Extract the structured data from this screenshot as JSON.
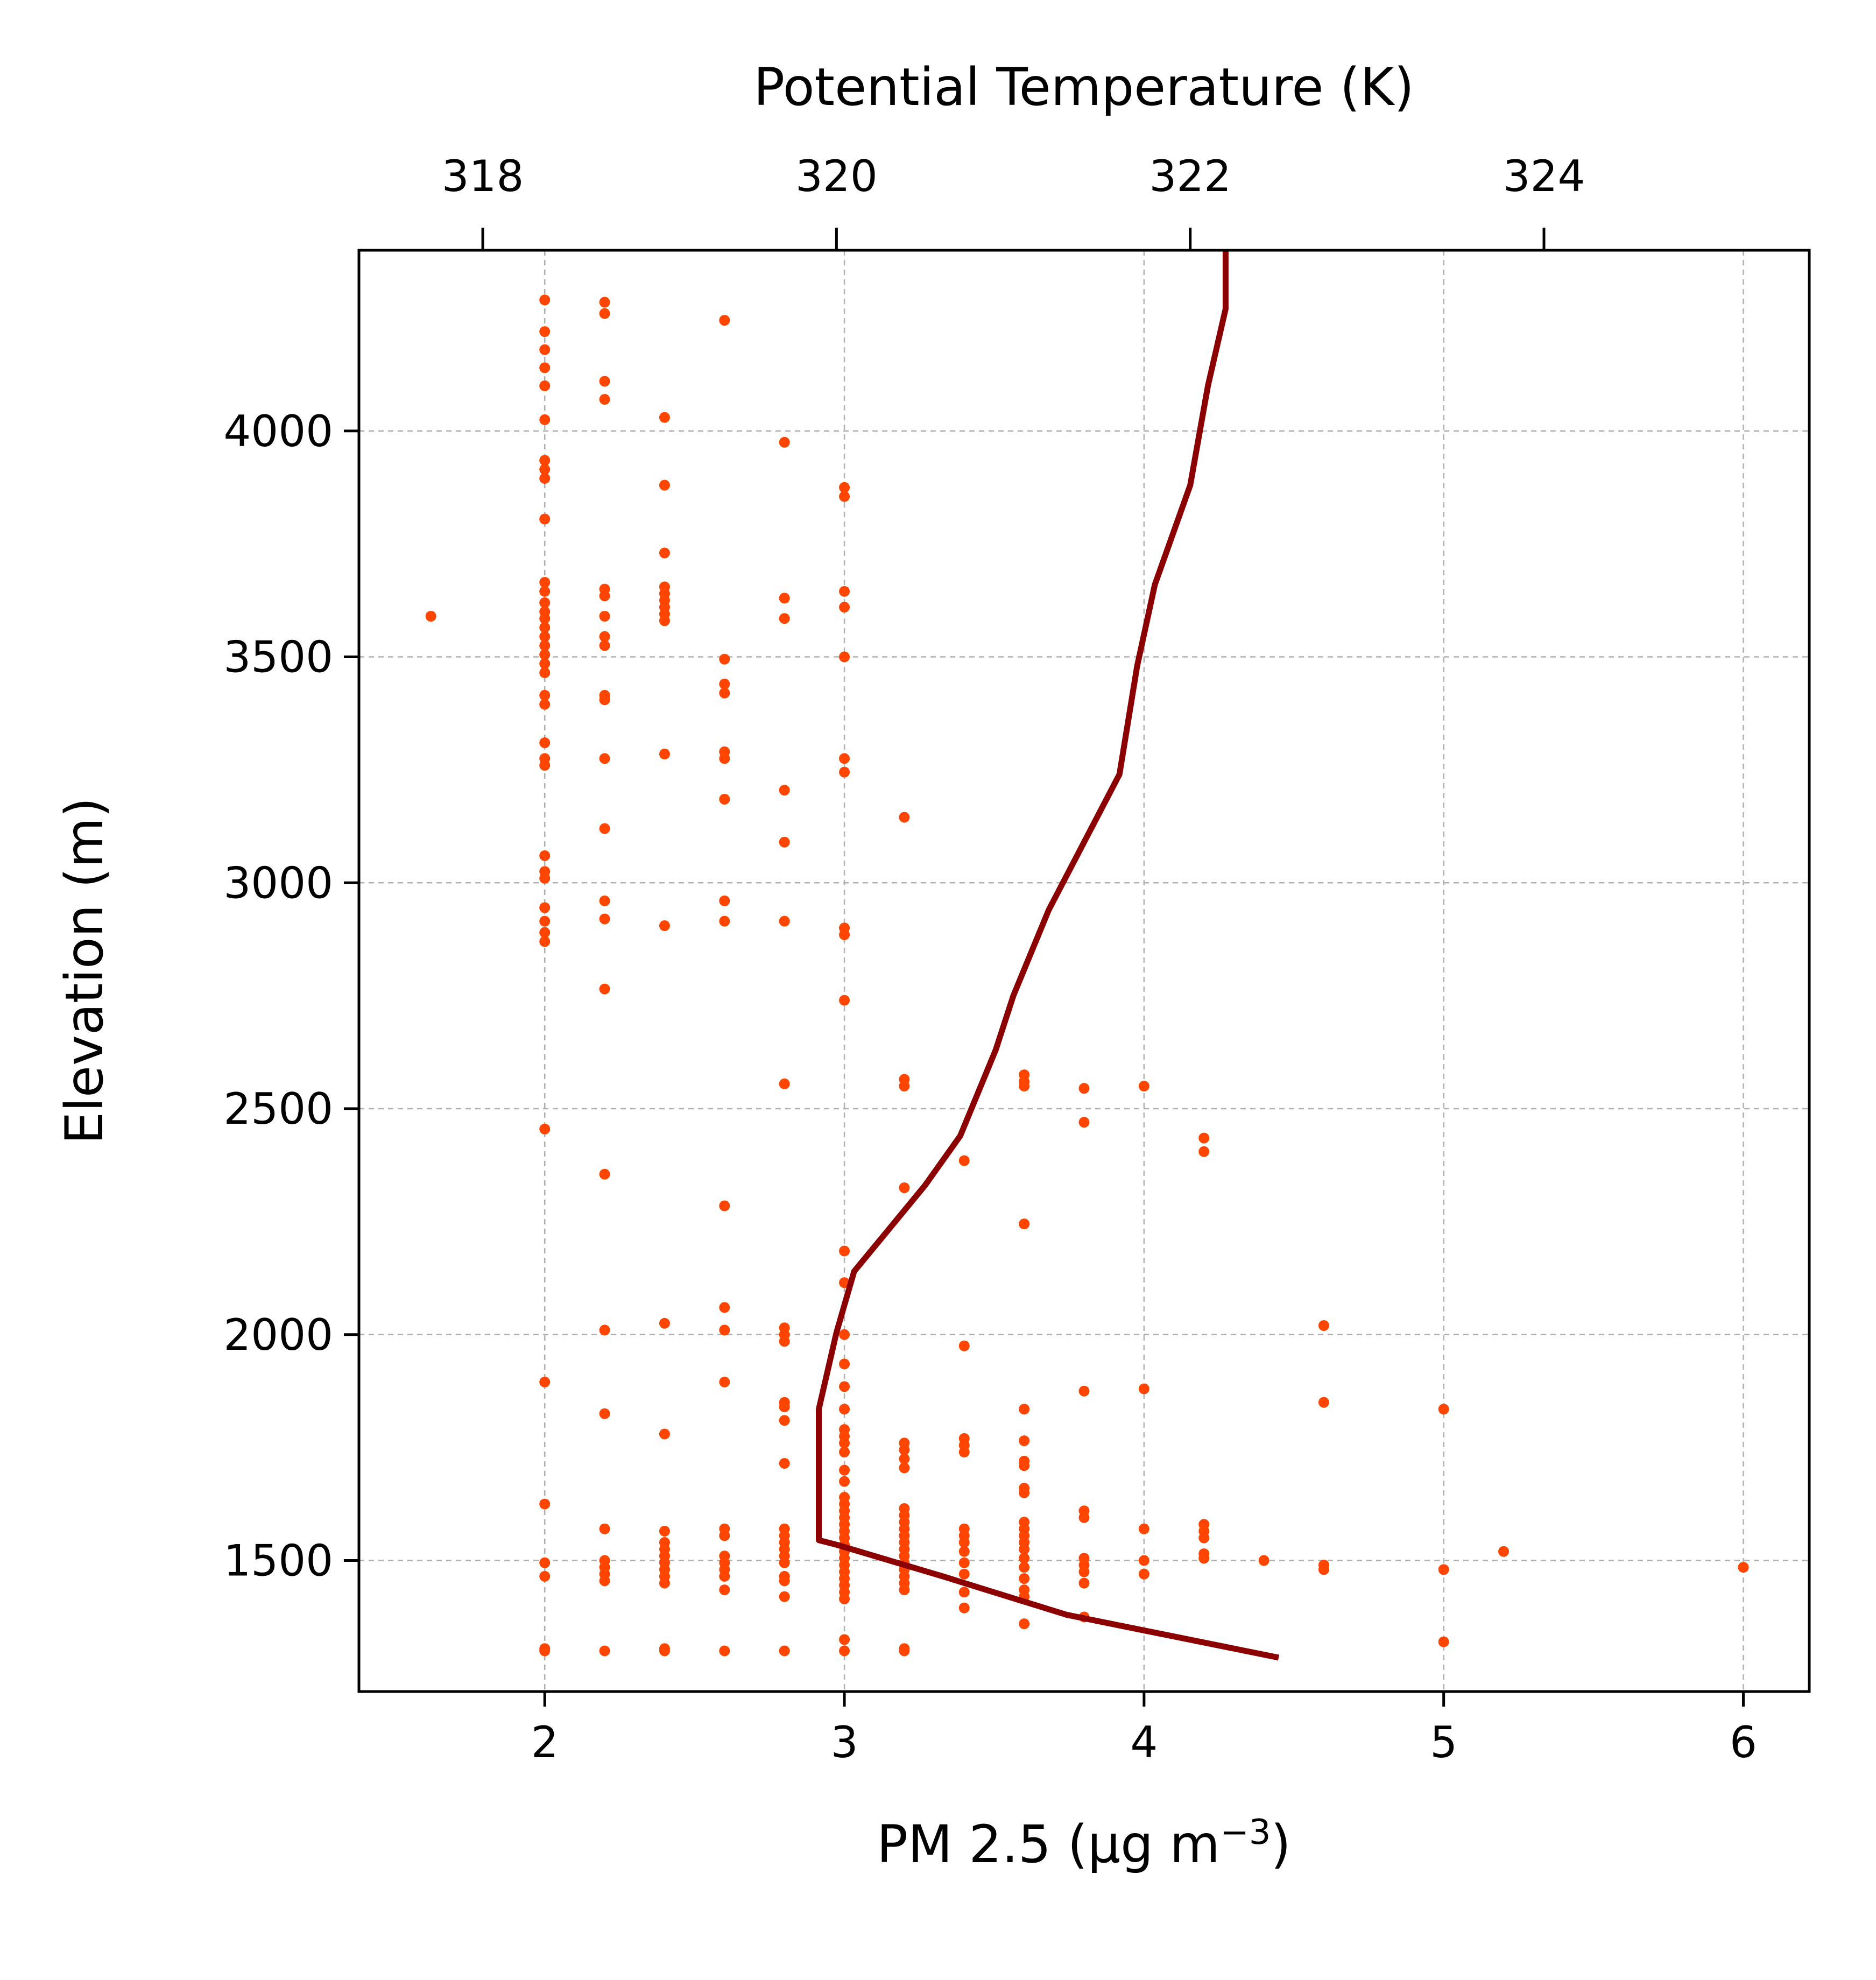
{
  "chart_data": {
    "type": "scatter",
    "xlabel": "PM 2.5 (μg m",
    "xlabel_superscript": "−3",
    "xlabel_suffix": ")",
    "ylabel": "Elevation (m)",
    "x2label": "Potential Temperature (K)",
    "xlim": [
      1.38,
      6.22
    ],
    "ylim": [
      1210,
      4400
    ],
    "x2lim": [
      317.3,
      325.5
    ],
    "x_ticks": [
      2,
      3,
      4,
      5,
      6
    ],
    "y_ticks": [
      1500,
      2000,
      2500,
      3000,
      3500,
      4000
    ],
    "x2_ticks": [
      318,
      320,
      322,
      324
    ],
    "grid": true,
    "colors": {
      "points": "#ff4500",
      "line": "#8b0000",
      "grid": "#b0b0b0"
    },
    "series": [
      {
        "type": "scatter",
        "axis": "bottom",
        "points": [
          [
            2,
            4290
          ],
          [
            2,
            4220
          ],
          [
            2,
            4180
          ],
          [
            2,
            4140
          ],
          [
            2,
            4100
          ],
          [
            2,
            4025
          ],
          [
            2,
            3935
          ],
          [
            2,
            3915
          ],
          [
            2,
            3895
          ],
          [
            2,
            3805
          ],
          [
            2,
            3665
          ],
          [
            2,
            3645
          ],
          [
            2,
            3620
          ],
          [
            2,
            3600
          ],
          [
            2,
            3585
          ],
          [
            2,
            3565
          ],
          [
            2,
            3545
          ],
          [
            2,
            3525
          ],
          [
            2,
            3505
          ],
          [
            2,
            3485
          ],
          [
            2,
            3465
          ],
          [
            2,
            3415
          ],
          [
            2,
            3395
          ],
          [
            2,
            3310
          ],
          [
            2,
            3275
          ],
          [
            2,
            3260
          ],
          [
            2,
            3060
          ],
          [
            2,
            3025
          ],
          [
            2,
            3010
          ],
          [
            2,
            2945
          ],
          [
            2,
            2915
          ],
          [
            2,
            2890
          ],
          [
            2,
            2870
          ],
          [
            2,
            2455
          ],
          [
            2,
            1895
          ],
          [
            2,
            1625
          ],
          [
            2,
            1495
          ],
          [
            2,
            1465
          ],
          [
            2,
            1305
          ],
          [
            2,
            1300
          ],
          [
            1.62,
            3590
          ],
          [
            2.2,
            4285
          ],
          [
            2.2,
            4260
          ],
          [
            2.2,
            4110
          ],
          [
            2.2,
            4070
          ],
          [
            2.2,
            3650
          ],
          [
            2.2,
            3635
          ],
          [
            2.2,
            3590
          ],
          [
            2.2,
            3545
          ],
          [
            2.2,
            3525
          ],
          [
            2.2,
            3415
          ],
          [
            2.2,
            3405
          ],
          [
            2.2,
            3275
          ],
          [
            2.2,
            3120
          ],
          [
            2.2,
            2960
          ],
          [
            2.2,
            2920
          ],
          [
            2.2,
            2765
          ],
          [
            2.2,
            2355
          ],
          [
            2.2,
            2010
          ],
          [
            2.2,
            1825
          ],
          [
            2.2,
            1570
          ],
          [
            2.2,
            1500
          ],
          [
            2.2,
            1485
          ],
          [
            2.2,
            1470
          ],
          [
            2.2,
            1455
          ],
          [
            2.2,
            1300
          ],
          [
            2.4,
            4030
          ],
          [
            2.4,
            3880
          ],
          [
            2.4,
            3730
          ],
          [
            2.4,
            3655
          ],
          [
            2.4,
            3640
          ],
          [
            2.4,
            3625
          ],
          [
            2.4,
            3610
          ],
          [
            2.4,
            3595
          ],
          [
            2.4,
            3580
          ],
          [
            2.4,
            3285
          ],
          [
            2.4,
            2905
          ],
          [
            2.4,
            2025
          ],
          [
            2.4,
            1780
          ],
          [
            2.4,
            1565
          ],
          [
            2.4,
            1540
          ],
          [
            2.4,
            1525
          ],
          [
            2.4,
            1510
          ],
          [
            2.4,
            1495
          ],
          [
            2.4,
            1480
          ],
          [
            2.4,
            1465
          ],
          [
            2.4,
            1450
          ],
          [
            2.4,
            1305
          ],
          [
            2.4,
            1300
          ],
          [
            2.6,
            4245
          ],
          [
            2.6,
            3495
          ],
          [
            2.6,
            3440
          ],
          [
            2.6,
            3420
          ],
          [
            2.6,
            3290
          ],
          [
            2.6,
            3275
          ],
          [
            2.6,
            3185
          ],
          [
            2.6,
            2960
          ],
          [
            2.6,
            2915
          ],
          [
            2.6,
            2285
          ],
          [
            2.6,
            2060
          ],
          [
            2.6,
            2010
          ],
          [
            2.6,
            1895
          ],
          [
            2.6,
            1570
          ],
          [
            2.6,
            1555
          ],
          [
            2.6,
            1510
          ],
          [
            2.6,
            1495
          ],
          [
            2.6,
            1480
          ],
          [
            2.6,
            1465
          ],
          [
            2.6,
            1435
          ],
          [
            2.6,
            1300
          ],
          [
            2.8,
            3975
          ],
          [
            2.8,
            3630
          ],
          [
            2.8,
            3585
          ],
          [
            2.8,
            3205
          ],
          [
            2.8,
            3090
          ],
          [
            2.8,
            2915
          ],
          [
            2.8,
            2555
          ],
          [
            2.8,
            2015
          ],
          [
            2.8,
            2000
          ],
          [
            2.8,
            1985
          ],
          [
            2.8,
            1850
          ],
          [
            2.8,
            1840
          ],
          [
            2.8,
            1810
          ],
          [
            2.8,
            1715
          ],
          [
            2.8,
            1570
          ],
          [
            2.8,
            1555
          ],
          [
            2.8,
            1540
          ],
          [
            2.8,
            1525
          ],
          [
            2.8,
            1510
          ],
          [
            2.8,
            1495
          ],
          [
            2.8,
            1465
          ],
          [
            2.8,
            1455
          ],
          [
            2.8,
            1420
          ],
          [
            2.8,
            1300
          ],
          [
            3,
            3875
          ],
          [
            3,
            3855
          ],
          [
            3,
            3645
          ],
          [
            3,
            3610
          ],
          [
            3,
            3500
          ],
          [
            3,
            3275
          ],
          [
            3,
            3245
          ],
          [
            3,
            2900
          ],
          [
            3,
            2885
          ],
          [
            3,
            2740
          ],
          [
            3,
            2185
          ],
          [
            3,
            2115
          ],
          [
            3,
            2000
          ],
          [
            3,
            1935
          ],
          [
            3,
            1885
          ],
          [
            3,
            1835
          ],
          [
            3,
            1790
          ],
          [
            3,
            1775
          ],
          [
            3,
            1760
          ],
          [
            3,
            1740
          ],
          [
            3,
            1700
          ],
          [
            3,
            1675
          ],
          [
            3,
            1640
          ],
          [
            3,
            1625
          ],
          [
            3,
            1610
          ],
          [
            3,
            1595
          ],
          [
            3,
            1580
          ],
          [
            3,
            1565
          ],
          [
            3,
            1550
          ],
          [
            3,
            1535
          ],
          [
            3,
            1520
          ],
          [
            3,
            1505
          ],
          [
            3,
            1490
          ],
          [
            3,
            1475
          ],
          [
            3,
            1460
          ],
          [
            3,
            1445
          ],
          [
            3,
            1430
          ],
          [
            3,
            1415
          ],
          [
            3,
            1325
          ],
          [
            3,
            1300
          ],
          [
            3.2,
            3145
          ],
          [
            3.2,
            2565
          ],
          [
            3.2,
            2550
          ],
          [
            3.2,
            2325
          ],
          [
            3.2,
            1760
          ],
          [
            3.2,
            1745
          ],
          [
            3.2,
            1725
          ],
          [
            3.2,
            1705
          ],
          [
            3.2,
            1615
          ],
          [
            3.2,
            1600
          ],
          [
            3.2,
            1585
          ],
          [
            3.2,
            1570
          ],
          [
            3.2,
            1555
          ],
          [
            3.2,
            1540
          ],
          [
            3.2,
            1525
          ],
          [
            3.2,
            1510
          ],
          [
            3.2,
            1495
          ],
          [
            3.2,
            1480
          ],
          [
            3.2,
            1465
          ],
          [
            3.2,
            1450
          ],
          [
            3.2,
            1435
          ],
          [
            3.2,
            1305
          ],
          [
            3.2,
            1300
          ],
          [
            3.4,
            2385
          ],
          [
            3.4,
            1975
          ],
          [
            3.4,
            1770
          ],
          [
            3.4,
            1755
          ],
          [
            3.4,
            1740
          ],
          [
            3.4,
            1570
          ],
          [
            3.4,
            1555
          ],
          [
            3.4,
            1540
          ],
          [
            3.4,
            1520
          ],
          [
            3.4,
            1495
          ],
          [
            3.4,
            1470
          ],
          [
            3.4,
            1430
          ],
          [
            3.4,
            1395
          ],
          [
            3.6,
            2575
          ],
          [
            3.6,
            2560
          ],
          [
            3.6,
            2550
          ],
          [
            3.6,
            2245
          ],
          [
            3.6,
            1835
          ],
          [
            3.6,
            1765
          ],
          [
            3.6,
            1720
          ],
          [
            3.6,
            1710
          ],
          [
            3.6,
            1660
          ],
          [
            3.6,
            1650
          ],
          [
            3.6,
            1585
          ],
          [
            3.6,
            1570
          ],
          [
            3.6,
            1555
          ],
          [
            3.6,
            1540
          ],
          [
            3.6,
            1525
          ],
          [
            3.6,
            1505
          ],
          [
            3.6,
            1485
          ],
          [
            3.6,
            1460
          ],
          [
            3.6,
            1435
          ],
          [
            3.6,
            1420
          ],
          [
            3.6,
            1360
          ],
          [
            3.8,
            2545
          ],
          [
            3.8,
            2470
          ],
          [
            3.8,
            1875
          ],
          [
            3.8,
            1610
          ],
          [
            3.8,
            1595
          ],
          [
            3.8,
            1505
          ],
          [
            3.8,
            1490
          ],
          [
            3.8,
            1475
          ],
          [
            3.8,
            1450
          ],
          [
            3.8,
            1375
          ],
          [
            4,
            2550
          ],
          [
            4,
            1880
          ],
          [
            4,
            1570
          ],
          [
            4,
            1500
          ],
          [
            4,
            1470
          ],
          [
            4.2,
            2435
          ],
          [
            4.2,
            2405
          ],
          [
            4.2,
            1580
          ],
          [
            4.2,
            1565
          ],
          [
            4.2,
            1550
          ],
          [
            4.2,
            1515
          ],
          [
            4.2,
            1505
          ],
          [
            4.4,
            1500
          ],
          [
            4.6,
            2020
          ],
          [
            4.6,
            1850
          ],
          [
            4.6,
            1490
          ],
          [
            4.6,
            1480
          ],
          [
            5,
            1835
          ],
          [
            5,
            1480
          ],
          [
            5,
            1320
          ],
          [
            5.2,
            1520
          ],
          [
            6,
            1485
          ]
        ]
      },
      {
        "type": "line",
        "axis": "top",
        "points": [
          [
            322.5,
            1285
          ],
          [
            321.3,
            1380
          ],
          [
            320.6,
            1465
          ],
          [
            320.0,
            1535
          ],
          [
            319.9,
            1545
          ],
          [
            319.9,
            1835
          ],
          [
            320.0,
            2005
          ],
          [
            320.1,
            2140
          ],
          [
            320.5,
            2330
          ],
          [
            320.7,
            2440
          ],
          [
            320.9,
            2630
          ],
          [
            321.0,
            2750
          ],
          [
            321.2,
            2940
          ],
          [
            321.6,
            3240
          ],
          [
            321.7,
            3480
          ],
          [
            321.8,
            3660
          ],
          [
            322.0,
            3880
          ],
          [
            322.1,
            4100
          ],
          [
            322.2,
            4270
          ],
          [
            322.2,
            4400
          ]
        ]
      }
    ]
  }
}
